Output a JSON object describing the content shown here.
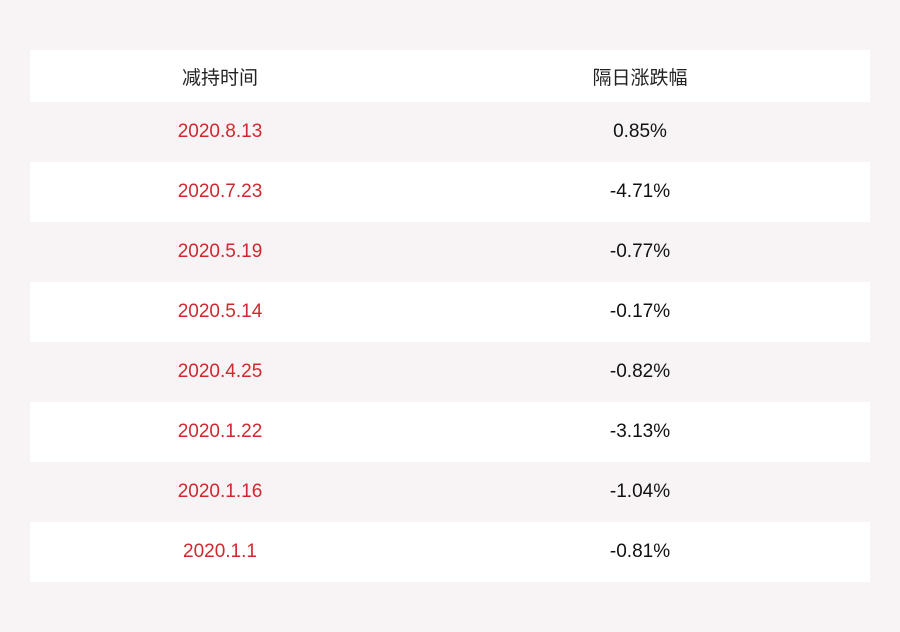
{
  "table": {
    "header": [
      "减持时间",
      "隔日涨跌幅"
    ],
    "rows": [
      [
        "2020.8.13",
        "0.85%"
      ],
      [
        "2020.7.23",
        "-4.71%"
      ],
      [
        "2020.5.19",
        "-0.77%"
      ],
      [
        "2020.5.14",
        "-0.17%"
      ],
      [
        "2020.4.25",
        "-0.82%"
      ],
      [
        "2020.1.22",
        "-3.13%"
      ],
      [
        "2020.1.16",
        "-1.04%"
      ],
      [
        "2020.1.1",
        "-0.81%"
      ]
    ]
  }
}
